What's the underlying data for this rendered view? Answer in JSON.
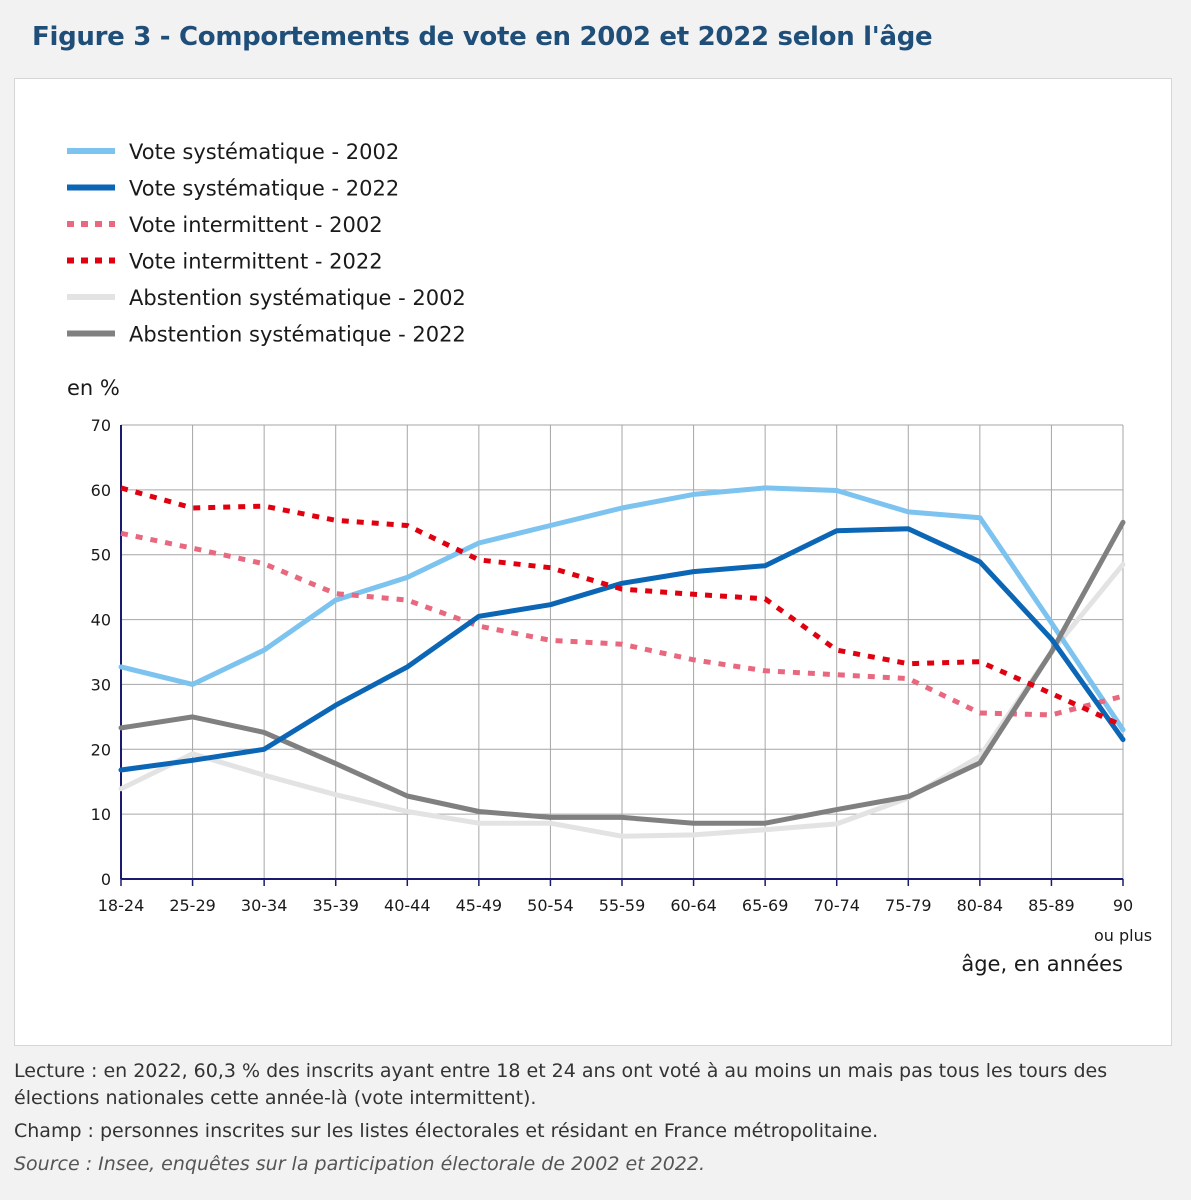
{
  "title": "Figure 3 - Comportements de vote en 2002 et 2022 selon l'âge",
  "notes": {
    "reading": "Lecture : en 2022, 60,3 % des inscrits ayant entre 18 et 24 ans ont voté à au moins un mais pas tous les tours des élections nationales cette année-là (vote intermittent).",
    "scope": "Champ : personnes inscrites sur les listes électorales et résidant en France métropolitaine.",
    "source": "Source : Insee, enquêtes sur la participation électorale de 2002 et 2022."
  },
  "chart_data": {
    "type": "line",
    "ylabel": "en %",
    "xlabel": "âge, en années",
    "ylim": [
      0,
      70
    ],
    "yticks": [
      0,
      10,
      20,
      30,
      40,
      50,
      60,
      70
    ],
    "categories": [
      "18-24",
      "25-29",
      "30-34",
      "35-39",
      "40-44",
      "45-49",
      "50-54",
      "55-59",
      "60-64",
      "65-69",
      "70-74",
      "75-79",
      "80-84",
      "85-89",
      "90"
    ],
    "last_category_sub": "ou plus",
    "grid": true,
    "legend_position": "top-left",
    "series": [
      {
        "name": "Vote systématique - 2002",
        "color": "#7cc3ef",
        "style": "solid",
        "values": [
          32.7,
          30.0,
          35.3,
          43.0,
          46.5,
          51.8,
          54.5,
          57.2,
          59.3,
          60.3,
          59.9,
          56.6,
          55.7,
          39.5,
          23.0
        ]
      },
      {
        "name": "Vote systématique - 2022",
        "color": "#0b66b5",
        "style": "solid",
        "values": [
          16.8,
          18.3,
          20.0,
          26.8,
          32.7,
          40.5,
          42.3,
          45.6,
          47.4,
          48.3,
          53.7,
          54.0,
          48.9,
          37.0,
          21.5
        ]
      },
      {
        "name": "Vote intermittent - 2002",
        "color": "#e8697f",
        "style": "dotted",
        "values": [
          53.3,
          51.0,
          48.6,
          44.0,
          43.0,
          39.0,
          36.8,
          36.2,
          33.8,
          32.1,
          31.5,
          30.9,
          25.6,
          25.3,
          28.2
        ]
      },
      {
        "name": "Vote intermittent - 2022",
        "color": "#e1000f",
        "style": "dotted",
        "values": [
          60.3,
          57.2,
          57.5,
          55.3,
          54.5,
          49.2,
          48.0,
          44.7,
          43.9,
          43.2,
          35.3,
          33.2,
          33.5,
          28.6,
          23.6
        ]
      },
      {
        "name": "Abstention systématique - 2002",
        "color": "#e3e3e3",
        "style": "solid",
        "values": [
          13.9,
          19.3,
          16.0,
          13.0,
          10.4,
          8.6,
          8.6,
          6.6,
          6.8,
          7.6,
          8.5,
          12.5,
          18.9,
          35.0,
          48.5
        ]
      },
      {
        "name": "Abstention systématique - 2022",
        "color": "#808080",
        "style": "solid",
        "values": [
          23.3,
          25.0,
          22.6,
          17.8,
          12.8,
          10.4,
          9.5,
          9.5,
          8.6,
          8.6,
          10.7,
          12.7,
          17.9,
          35.0,
          55.0
        ]
      }
    ]
  }
}
